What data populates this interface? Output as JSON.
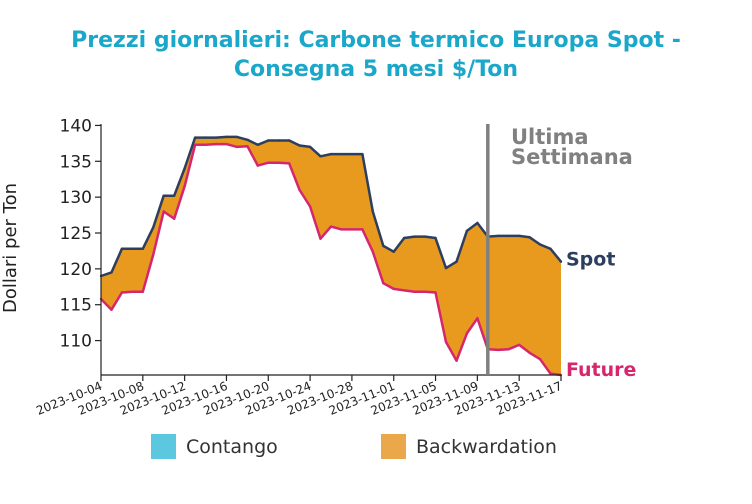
{
  "chart_data": {
    "type": "area",
    "title_lines": [
      "Prezzi giornalieri: Carbone termico Europa Spot -",
      "Consegna 5 mesi $/Ton"
    ],
    "ylabel": "Dollari per Ton",
    "xlabel": "",
    "ylim": [
      105.2,
      140.2
    ],
    "yticks": [
      110,
      115,
      120,
      125,
      130,
      135,
      140
    ],
    "xlim": [
      "2023-10-04",
      "2023-11-17"
    ],
    "xticks": [
      "2023-10-04",
      "2023-10-08",
      "2023-10-12",
      "2023-10-16",
      "2023-10-20",
      "2023-10-24",
      "2023-10-28",
      "2023-11-01",
      "2023-11-05",
      "2023-11-09",
      "2023-11-13",
      "2023-11-17"
    ],
    "series": [
      {
        "name": "Spot",
        "color": "#2d3e5e",
        "points": [
          [
            "2023-10-04",
            119.0
          ],
          [
            "2023-10-05",
            119.5
          ],
          [
            "2023-10-06",
            122.8
          ],
          [
            "2023-10-07",
            122.8
          ],
          [
            "2023-10-08",
            122.8
          ],
          [
            "2023-10-09",
            125.8
          ],
          [
            "2023-10-10",
            130.2
          ],
          [
            "2023-10-11",
            130.2
          ],
          [
            "2023-10-12",
            134.0
          ],
          [
            "2023-10-13",
            138.3
          ],
          [
            "2023-10-14",
            138.3
          ],
          [
            "2023-10-15",
            138.3
          ],
          [
            "2023-10-16",
            138.4
          ],
          [
            "2023-10-17",
            138.4
          ],
          [
            "2023-10-18",
            138.0
          ],
          [
            "2023-10-19",
            137.3
          ],
          [
            "2023-10-20",
            137.9
          ],
          [
            "2023-10-21",
            137.9
          ],
          [
            "2023-10-22",
            137.9
          ],
          [
            "2023-10-23",
            137.2
          ],
          [
            "2023-10-24",
            137.0
          ],
          [
            "2023-10-25",
            135.7
          ],
          [
            "2023-10-26",
            136.0
          ],
          [
            "2023-10-27",
            136.0
          ],
          [
            "2023-10-28",
            136.0
          ],
          [
            "2023-10-29",
            136.0
          ],
          [
            "2023-10-30",
            128.0
          ],
          [
            "2023-10-31",
            123.2
          ],
          [
            "2023-11-01",
            122.4
          ],
          [
            "2023-11-02",
            124.3
          ],
          [
            "2023-11-03",
            124.5
          ],
          [
            "2023-11-04",
            124.5
          ],
          [
            "2023-11-05",
            124.3
          ],
          [
            "2023-11-06",
            120.1
          ],
          [
            "2023-11-07",
            121.0
          ],
          [
            "2023-11-08",
            125.3
          ],
          [
            "2023-11-09",
            126.4
          ],
          [
            "2023-11-10",
            124.5
          ],
          [
            "2023-11-11",
            124.6
          ],
          [
            "2023-11-12",
            124.6
          ],
          [
            "2023-11-13",
            124.6
          ],
          [
            "2023-11-14",
            124.4
          ],
          [
            "2023-11-15",
            123.4
          ],
          [
            "2023-11-16",
            122.8
          ],
          [
            "2023-11-17",
            121.0
          ]
        ]
      },
      {
        "name": "Future",
        "color": "#d6266e",
        "points": [
          [
            "2023-10-04",
            115.8
          ],
          [
            "2023-10-05",
            114.3
          ],
          [
            "2023-10-06",
            116.7
          ],
          [
            "2023-10-07",
            116.8
          ],
          [
            "2023-10-08",
            116.8
          ],
          [
            "2023-10-09",
            122.0
          ],
          [
            "2023-10-10",
            128.0
          ],
          [
            "2023-10-11",
            127.0
          ],
          [
            "2023-10-12",
            131.5
          ],
          [
            "2023-10-13",
            137.3
          ],
          [
            "2023-10-14",
            137.3
          ],
          [
            "2023-10-15",
            137.4
          ],
          [
            "2023-10-16",
            137.4
          ],
          [
            "2023-10-17",
            137.0
          ],
          [
            "2023-10-18",
            137.1
          ],
          [
            "2023-10-19",
            134.4
          ],
          [
            "2023-10-20",
            134.8
          ],
          [
            "2023-10-21",
            134.8
          ],
          [
            "2023-10-22",
            134.7
          ],
          [
            "2023-10-23",
            131.0
          ],
          [
            "2023-10-24",
            128.7
          ],
          [
            "2023-10-25",
            124.2
          ],
          [
            "2023-10-26",
            125.9
          ],
          [
            "2023-10-27",
            125.5
          ],
          [
            "2023-10-28",
            125.5
          ],
          [
            "2023-10-29",
            125.5
          ],
          [
            "2023-10-30",
            122.4
          ],
          [
            "2023-10-31",
            118.0
          ],
          [
            "2023-11-01",
            117.2
          ],
          [
            "2023-11-02",
            117.0
          ],
          [
            "2023-11-03",
            116.8
          ],
          [
            "2023-11-04",
            116.8
          ],
          [
            "2023-11-05",
            116.7
          ],
          [
            "2023-11-06",
            109.8
          ],
          [
            "2023-11-07",
            107.2
          ],
          [
            "2023-11-08",
            111.0
          ],
          [
            "2023-11-09",
            113.1
          ],
          [
            "2023-11-10",
            108.8
          ],
          [
            "2023-11-11",
            108.7
          ],
          [
            "2023-11-12",
            108.8
          ],
          [
            "2023-11-13",
            109.4
          ],
          [
            "2023-11-14",
            108.3
          ],
          [
            "2023-11-15",
            107.4
          ],
          [
            "2023-11-16",
            105.4
          ],
          [
            "2023-11-17",
            105.2
          ]
        ]
      }
    ],
    "fill": {
      "contango_color": "#5bc8e0",
      "backwardation_color": "#e89a1e"
    },
    "legend": {
      "position": "bottom",
      "items": [
        {
          "label": "Contango",
          "color": "#5bc8e0"
        },
        {
          "label": "Backwardation",
          "color": "#eaa84a"
        }
      ]
    },
    "annotations": {
      "vline_date": "2023-11-10",
      "vline_color": "#808080",
      "label_lines": [
        "Ultima",
        "Settimana"
      ]
    },
    "grid": false
  }
}
